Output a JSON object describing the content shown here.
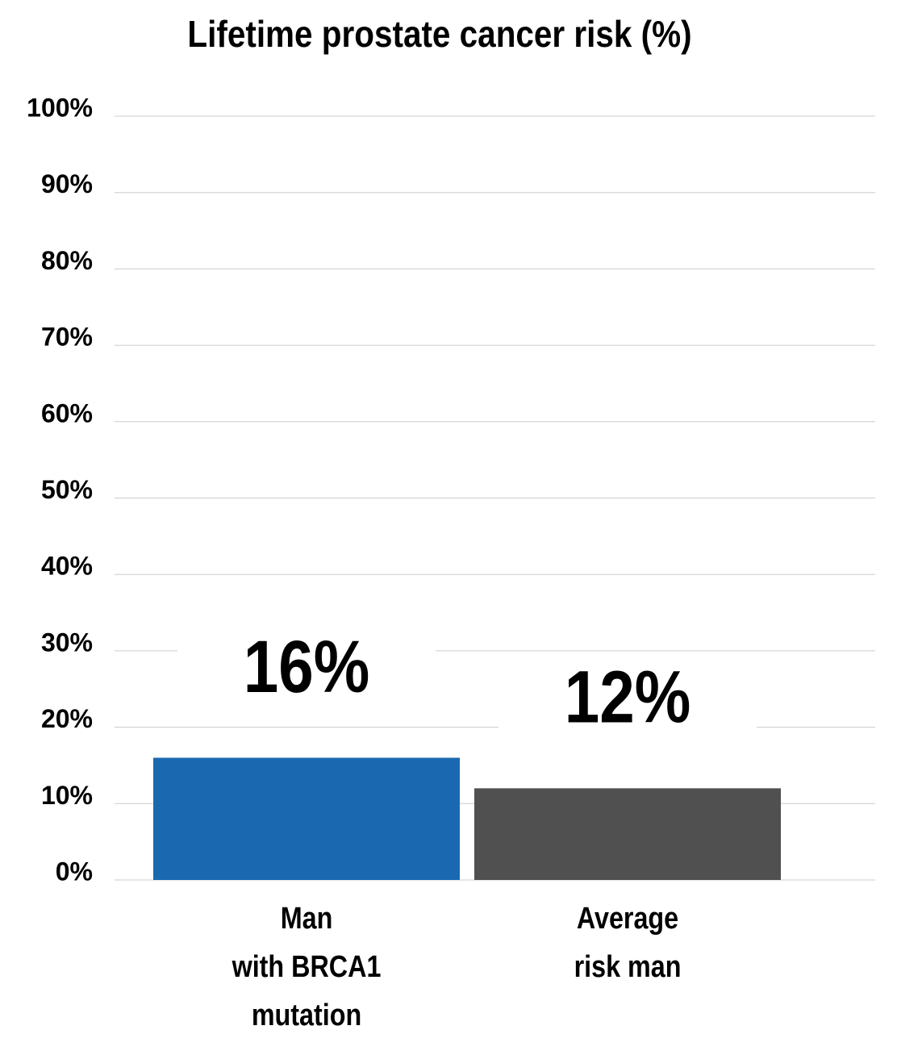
{
  "chart_data": {
    "type": "bar",
    "title": "Lifetime prostate cancer risk (%)",
    "categories": [
      "Man\nwith BRCA1\nmutation",
      "Average\nrisk man"
    ],
    "values": [
      16,
      12
    ],
    "value_labels": [
      "16%",
      "12%"
    ],
    "colors": [
      "#1a69b0",
      "#505050"
    ],
    "label_colors": [
      "#1a69b0",
      "#444444"
    ],
    "ylim": [
      0,
      100
    ],
    "yticks": [
      {
        "value": 0,
        "label": "0%"
      },
      {
        "value": 10,
        "label": "10%"
      },
      {
        "value": 20,
        "label": "20%"
      },
      {
        "value": 30,
        "label": "30%"
      },
      {
        "value": 40,
        "label": "40%"
      },
      {
        "value": 50,
        "label": "50%"
      },
      {
        "value": 60,
        "label": "60%"
      },
      {
        "value": 70,
        "label": "70%"
      },
      {
        "value": 80,
        "label": "80%"
      },
      {
        "value": 90,
        "label": "90%"
      },
      {
        "value": 100,
        "label": "100%"
      }
    ],
    "grid": true
  }
}
